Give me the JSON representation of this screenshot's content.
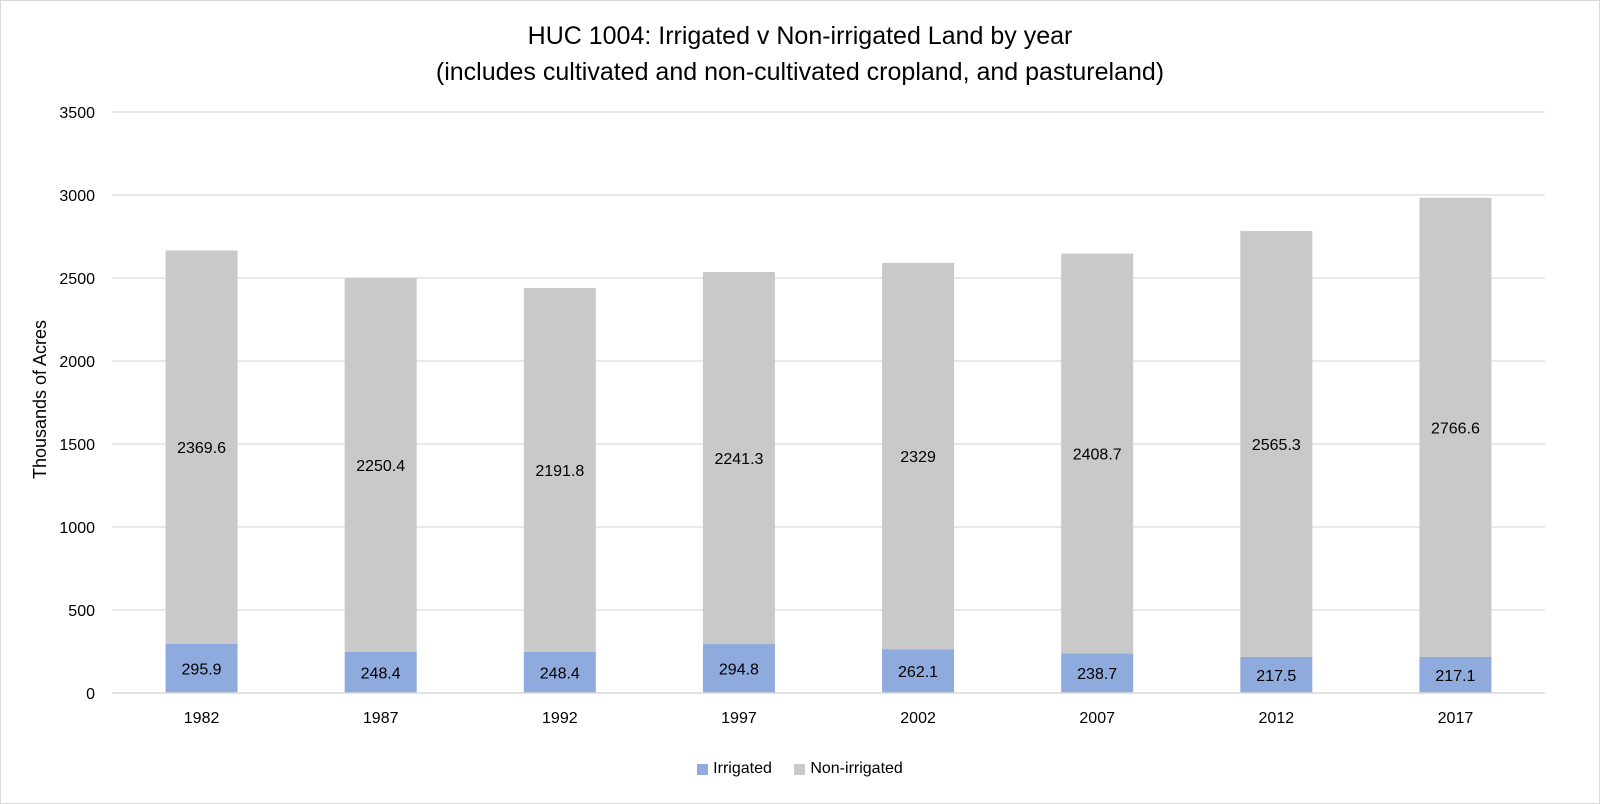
{
  "chart_data": {
    "type": "bar",
    "stacked": true,
    "title": "HUC 1004: Irrigated v Non-irrigated Land by year",
    "subtitle": "(includes cultivated and non-cultivated cropland, and pastureland)",
    "xlabel": "",
    "ylabel": "Thousands of Acres",
    "ylim": [
      0,
      3500
    ],
    "yticks": [
      0,
      500,
      1000,
      1500,
      2000,
      2500,
      3000,
      3500
    ],
    "categories": [
      "1982",
      "1987",
      "1992",
      "1997",
      "2002",
      "2007",
      "2012",
      "2017"
    ],
    "series": [
      {
        "name": "Irrigated",
        "color": "#8faadc",
        "values": [
          295.9,
          248.4,
          248.4,
          294.8,
          262.1,
          238.7,
          217.5,
          217.1
        ]
      },
      {
        "name": "Non-irrigated",
        "color": "#c9c9c9",
        "values": [
          2369.6,
          2250.4,
          2191.8,
          2241.3,
          2329,
          2408.7,
          2565.3,
          2766.6
        ]
      }
    ],
    "grid": true,
    "legend": "bottom"
  }
}
